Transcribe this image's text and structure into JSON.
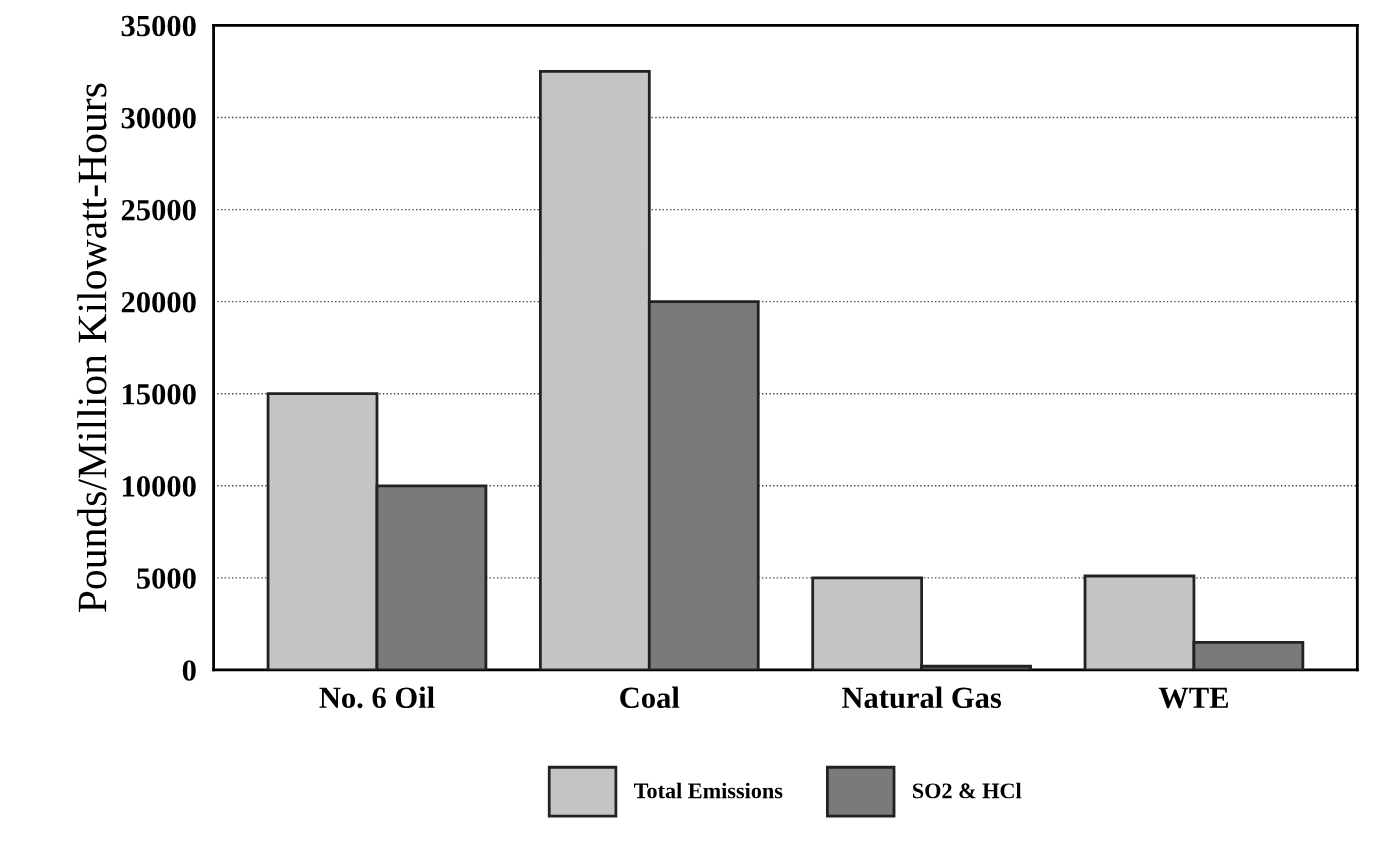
{
  "chart_data": {
    "type": "bar",
    "ylabel": "Pounds/Million Kilowatt-Hours",
    "categories": [
      "No. 6 Oil",
      "Coal",
      "Natural Gas",
      "WTE"
    ],
    "series": [
      {
        "name": "Total Emissions",
        "color": "#c4c4c4",
        "values": [
          15000,
          32500,
          5000,
          5100
        ]
      },
      {
        "name": "SO2 & HCl",
        "color": "#7a7a7a",
        "values": [
          10000,
          20000,
          200,
          1500
        ]
      }
    ],
    "ylim": [
      0,
      35000
    ],
    "yticks": [
      0,
      5000,
      10000,
      15000,
      20000,
      25000,
      30000,
      35000
    ],
    "grid": "y",
    "legend": "bottom"
  }
}
